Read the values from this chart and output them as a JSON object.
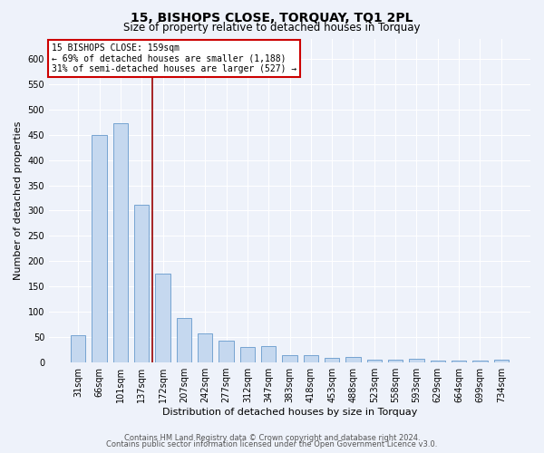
{
  "title": "15, BISHOPS CLOSE, TORQUAY, TQ1 2PL",
  "subtitle": "Size of property relative to detached houses in Torquay",
  "xlabel": "Distribution of detached houses by size in Torquay",
  "ylabel": "Number of detached properties",
  "categories": [
    "31sqm",
    "66sqm",
    "101sqm",
    "137sqm",
    "172sqm",
    "207sqm",
    "242sqm",
    "277sqm",
    "312sqm",
    "347sqm",
    "383sqm",
    "418sqm",
    "453sqm",
    "488sqm",
    "523sqm",
    "558sqm",
    "593sqm",
    "629sqm",
    "664sqm",
    "699sqm",
    "734sqm"
  ],
  "values": [
    54,
    450,
    472,
    311,
    176,
    88,
    58,
    43,
    30,
    32,
    14,
    15,
    9,
    10,
    5,
    5,
    8,
    3,
    3,
    3,
    5
  ],
  "bar_color": "#c5d8ef",
  "bar_edge_color": "#6699cc",
  "red_line_x": 3.5,
  "annotation_line1": "15 BISHOPS CLOSE: 159sqm",
  "annotation_line2": "← 69% of detached houses are smaller (1,188)",
  "annotation_line3": "31% of semi-detached houses are larger (527) →",
  "annotation_box_facecolor": "#ffffff",
  "annotation_box_edgecolor": "#cc0000",
  "ylim_max": 640,
  "yticks": [
    0,
    50,
    100,
    150,
    200,
    250,
    300,
    350,
    400,
    450,
    500,
    550,
    600
  ],
  "background_color": "#eef2fa",
  "grid_color": "#dde4f0",
  "footer_line1": "Contains HM Land Registry data © Crown copyright and database right 2024.",
  "footer_line2": "Contains public sector information licensed under the Open Government Licence v3.0.",
  "title_fontsize": 10,
  "subtitle_fontsize": 8.5,
  "axis_label_fontsize": 8,
  "tick_fontsize": 7,
  "footer_fontsize": 6,
  "annotation_fontsize": 7
}
